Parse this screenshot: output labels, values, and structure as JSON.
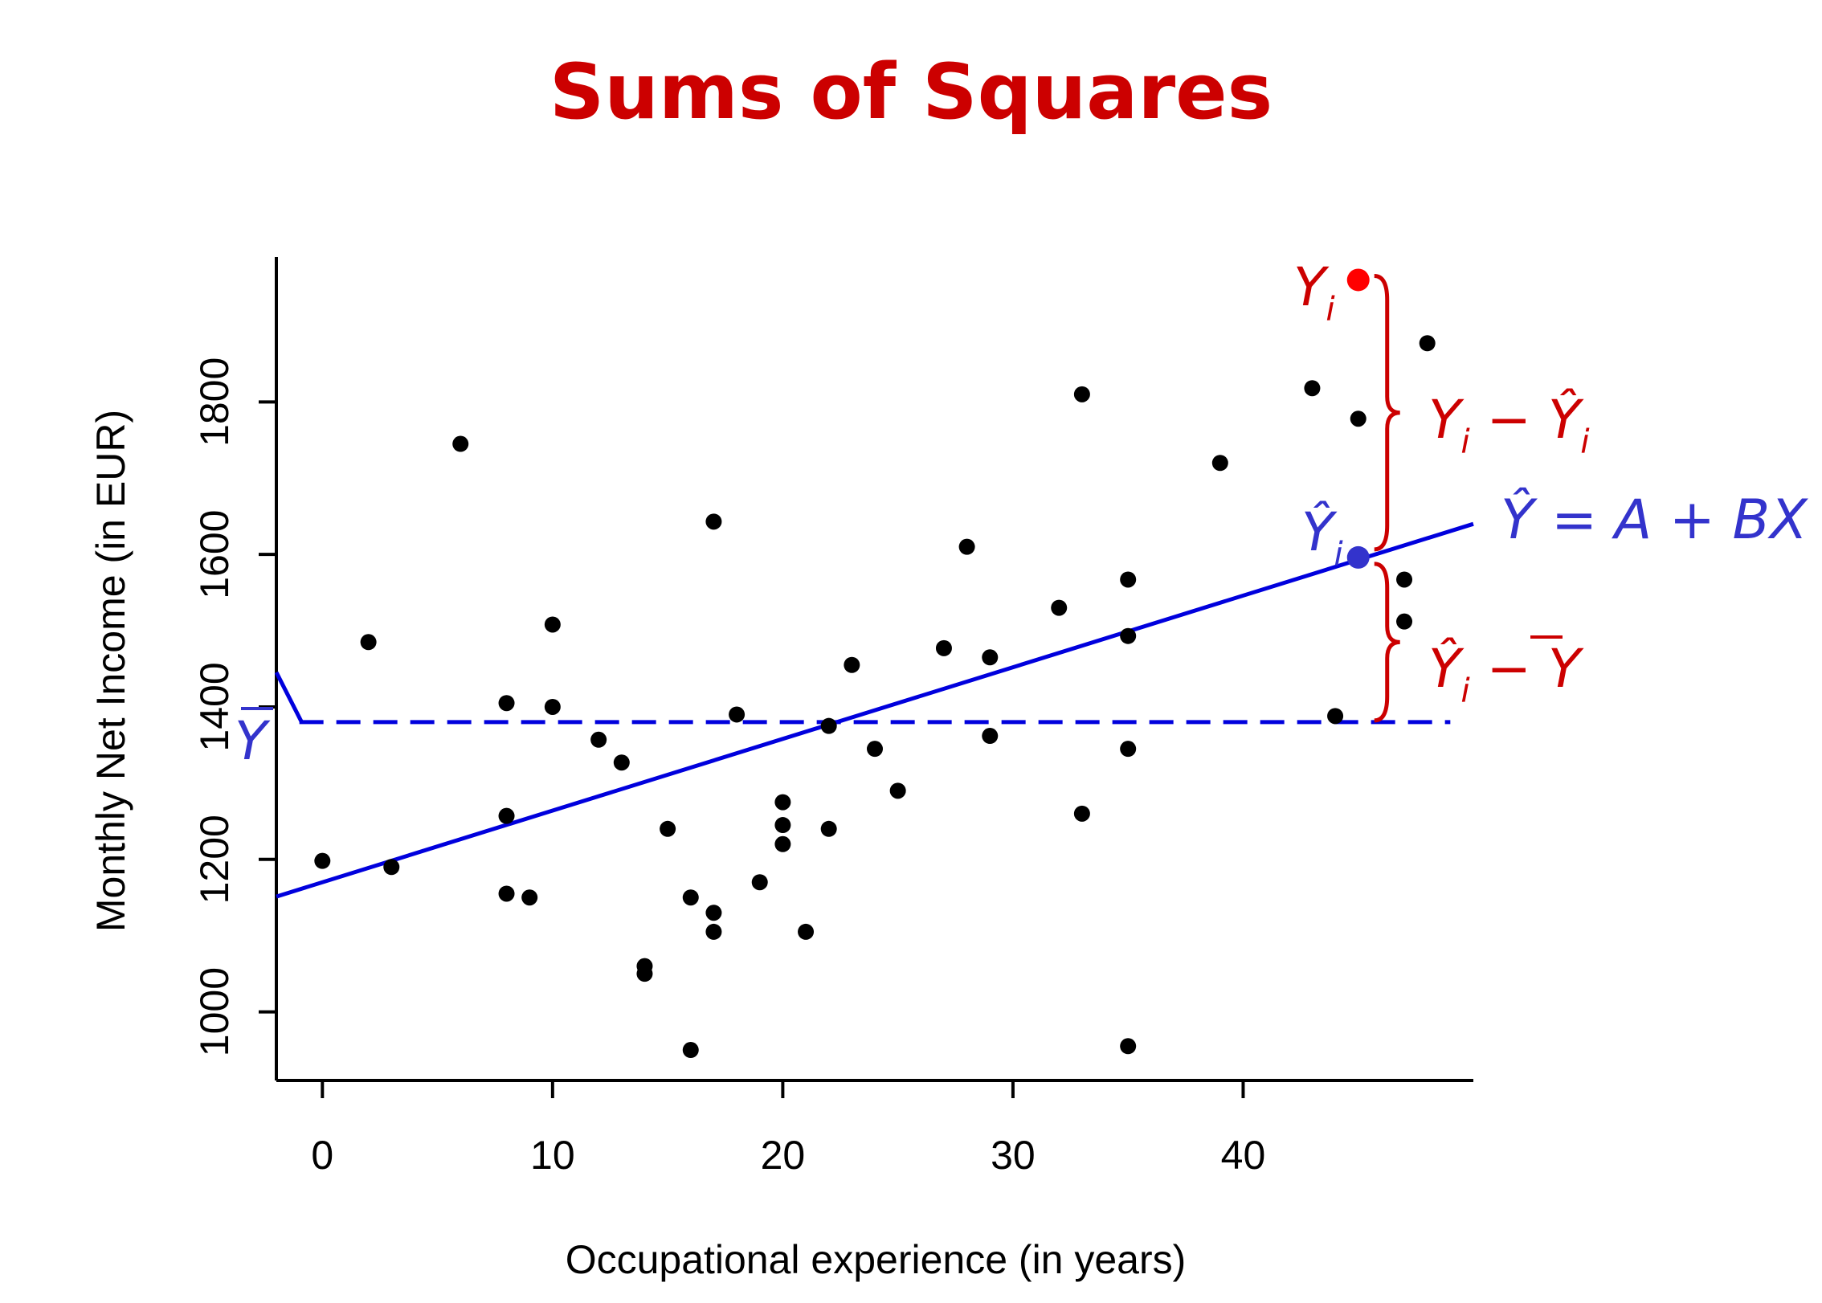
{
  "chart_data": {
    "type": "scatter",
    "title": "Sums of Squares",
    "xlabel": "Occupational experience (in years)",
    "ylabel": "Monthly Net Income (in EUR)",
    "xlim": [
      -2,
      50
    ],
    "ylim": [
      910,
      1990
    ],
    "x_ticks": [
      0,
      10,
      20,
      30,
      40
    ],
    "y_ticks": [
      1000,
      1200,
      1400,
      1600,
      1800
    ],
    "grid": false,
    "points": [
      [
        0,
        1198
      ],
      [
        2,
        1485
      ],
      [
        3,
        1190
      ],
      [
        6,
        1745
      ],
      [
        8,
        1405
      ],
      [
        8,
        1257
      ],
      [
        8,
        1155
      ],
      [
        9,
        1150
      ],
      [
        10,
        1508
      ],
      [
        10,
        1400
      ],
      [
        12,
        1357
      ],
      [
        13,
        1327
      ],
      [
        14,
        1060
      ],
      [
        14,
        1050
      ],
      [
        15,
        1240
      ],
      [
        16,
        1150
      ],
      [
        16,
        950
      ],
      [
        17,
        1643
      ],
      [
        17,
        1130
      ],
      [
        17,
        1105
      ],
      [
        18,
        1390
      ],
      [
        19,
        1170
      ],
      [
        20,
        1275
      ],
      [
        20,
        1245
      ],
      [
        20,
        1220
      ],
      [
        21,
        1105
      ],
      [
        22,
        1375
      ],
      [
        22,
        1240
      ],
      [
        23,
        1455
      ],
      [
        24,
        1345
      ],
      [
        25,
        1290
      ],
      [
        27,
        1477
      ],
      [
        28,
        1610
      ],
      [
        29,
        1465
      ],
      [
        29,
        1362
      ],
      [
        32,
        1530
      ],
      [
        33,
        1810
      ],
      [
        33,
        1260
      ],
      [
        35,
        1567
      ],
      [
        35,
        1493
      ],
      [
        35,
        1345
      ],
      [
        35,
        955
      ],
      [
        39,
        1720
      ],
      [
        43,
        1818
      ],
      [
        44,
        1388
      ],
      [
        45,
        1778
      ],
      [
        47,
        1567
      ],
      [
        47,
        1512
      ],
      [
        48,
        1877
      ]
    ],
    "regression_line": {
      "intercept": 1170,
      "slope": 9.4
    },
    "mean_y": 1380,
    "highlight_x": 45,
    "highlight_y": 1960,
    "highlight_yhat": 1596,
    "colors": {
      "points": "#000000",
      "line": "#0000dd",
      "highlight_y": "#ff0000",
      "highlight_yhat": "#3333cc",
      "annotation_red": "#cc0000",
      "annotation_blue": "#3333cc"
    },
    "annotations": {
      "yi": "Y",
      "yi_sub": "i",
      "yhat_i": "Ŷ",
      "yhat_i_sub": "i",
      "ybar": "Y",
      "resid_label": {
        "a": "Y",
        "a_sub": "i",
        "op": " − ",
        "b": "Ŷ",
        "b_sub": "i"
      },
      "explained_label": {
        "a": "Ŷ",
        "a_sub": "i",
        "op": " − ",
        "b": "Y"
      },
      "equation": {
        "lhs": "Ŷ",
        "eq": " = ",
        "rhs": "A + BX"
      }
    }
  }
}
